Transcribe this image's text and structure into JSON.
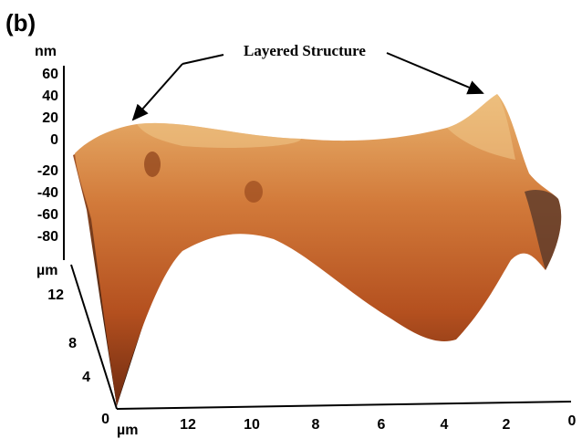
{
  "panel_label": "(b)",
  "annotation": "Layered Structure",
  "z_axis": {
    "unit": "nm",
    "ticks": [
      60,
      40,
      20,
      0,
      -20,
      -40,
      -60,
      -80
    ]
  },
  "y_axis": {
    "unit": "µm",
    "ticks": [
      12,
      8,
      4,
      0
    ]
  },
  "x_axis": {
    "unit": "µm",
    "ticks": [
      12,
      10,
      8,
      6,
      4,
      2,
      0
    ]
  }
}
